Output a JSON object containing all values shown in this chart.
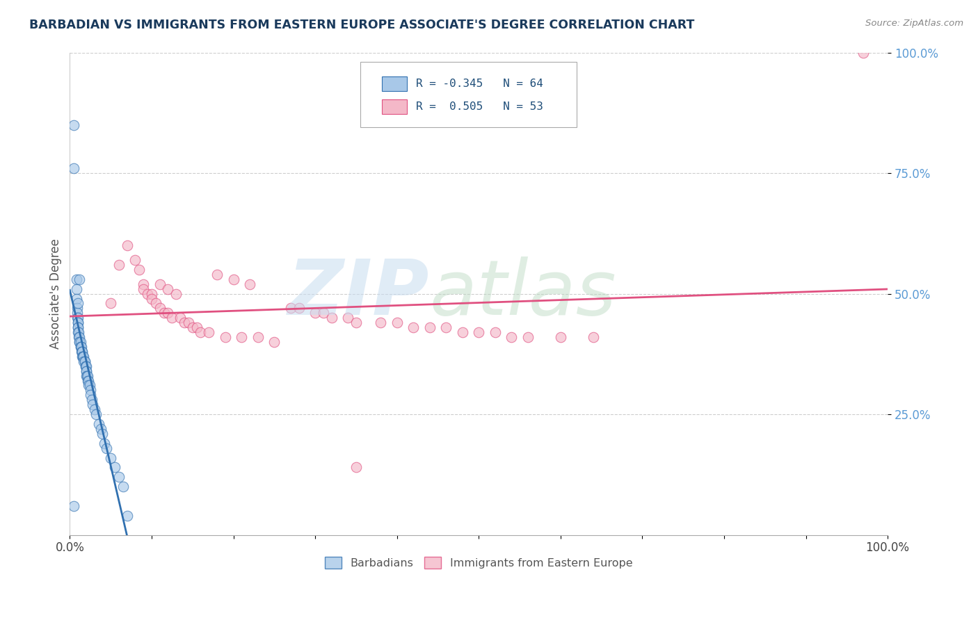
{
  "title": "BARBADIAN VS IMMIGRANTS FROM EASTERN EUROPE ASSOCIATE'S DEGREE CORRELATION CHART",
  "source": "Source: ZipAtlas.com",
  "ylabel": "Associate's Degree",
  "xlim": [
    0.0,
    1.0
  ],
  "ylim": [
    0.0,
    1.0
  ],
  "yticks": [
    0.25,
    0.5,
    0.75,
    1.0
  ],
  "ytick_labels": [
    "25.0%",
    "50.0%",
    "75.0%",
    "100.0%"
  ],
  "xtick_labels": [
    "0.0%",
    "",
    "",
    "",
    "",
    "",
    "",
    "",
    "",
    "",
    "100.0%"
  ],
  "legend_label1": "Barbadians",
  "legend_label2": "Immigrants from Eastern Europe",
  "r1": -0.345,
  "n1": 64,
  "r2": 0.505,
  "n2": 53,
  "color_blue": "#a8c8e8",
  "color_pink": "#f4b8c8",
  "line_blue": "#3070b0",
  "line_pink": "#e05080",
  "background": "#ffffff",
  "blue_scatter_x": [
    0.005,
    0.005,
    0.008,
    0.008,
    0.008,
    0.009,
    0.009,
    0.009,
    0.01,
    0.01,
    0.01,
    0.01,
    0.01,
    0.01,
    0.011,
    0.011,
    0.012,
    0.012,
    0.012,
    0.013,
    0.013,
    0.013,
    0.014,
    0.014,
    0.015,
    0.015,
    0.015,
    0.016,
    0.016,
    0.017,
    0.017,
    0.018,
    0.018,
    0.019,
    0.019,
    0.02,
    0.02,
    0.02,
    0.02,
    0.021,
    0.022,
    0.022,
    0.023,
    0.023,
    0.024,
    0.025,
    0.025,
    0.027,
    0.028,
    0.03,
    0.032,
    0.035,
    0.038,
    0.04,
    0.042,
    0.045,
    0.05,
    0.055,
    0.06,
    0.065,
    0.01,
    0.012,
    0.07,
    0.005
  ],
  "blue_scatter_y": [
    0.85,
    0.76,
    0.53,
    0.51,
    0.49,
    0.47,
    0.46,
    0.45,
    0.45,
    0.44,
    0.44,
    0.43,
    0.43,
    0.42,
    0.42,
    0.41,
    0.41,
    0.4,
    0.4,
    0.4,
    0.39,
    0.39,
    0.39,
    0.38,
    0.38,
    0.38,
    0.37,
    0.37,
    0.37,
    0.37,
    0.36,
    0.36,
    0.36,
    0.35,
    0.35,
    0.35,
    0.34,
    0.34,
    0.33,
    0.33,
    0.33,
    0.32,
    0.32,
    0.31,
    0.31,
    0.3,
    0.29,
    0.28,
    0.27,
    0.26,
    0.25,
    0.23,
    0.22,
    0.21,
    0.19,
    0.18,
    0.16,
    0.14,
    0.12,
    0.1,
    0.48,
    0.53,
    0.04,
    0.06
  ],
  "pink_scatter_x": [
    0.05,
    0.06,
    0.07,
    0.08,
    0.085,
    0.09,
    0.09,
    0.095,
    0.1,
    0.1,
    0.105,
    0.11,
    0.11,
    0.115,
    0.12,
    0.12,
    0.125,
    0.13,
    0.135,
    0.14,
    0.145,
    0.15,
    0.155,
    0.16,
    0.17,
    0.18,
    0.19,
    0.2,
    0.21,
    0.22,
    0.23,
    0.25,
    0.27,
    0.28,
    0.3,
    0.31,
    0.32,
    0.34,
    0.35,
    0.38,
    0.4,
    0.42,
    0.44,
    0.46,
    0.48,
    0.5,
    0.52,
    0.54,
    0.56,
    0.6,
    0.64,
    0.97,
    0.35
  ],
  "pink_scatter_y": [
    0.48,
    0.56,
    0.6,
    0.57,
    0.55,
    0.52,
    0.51,
    0.5,
    0.5,
    0.49,
    0.48,
    0.52,
    0.47,
    0.46,
    0.51,
    0.46,
    0.45,
    0.5,
    0.45,
    0.44,
    0.44,
    0.43,
    0.43,
    0.42,
    0.42,
    0.54,
    0.41,
    0.53,
    0.41,
    0.52,
    0.41,
    0.4,
    0.47,
    0.47,
    0.46,
    0.46,
    0.45,
    0.45,
    0.44,
    0.44,
    0.44,
    0.43,
    0.43,
    0.43,
    0.42,
    0.42,
    0.42,
    0.41,
    0.41,
    0.41,
    0.41,
    1.0,
    0.14
  ]
}
